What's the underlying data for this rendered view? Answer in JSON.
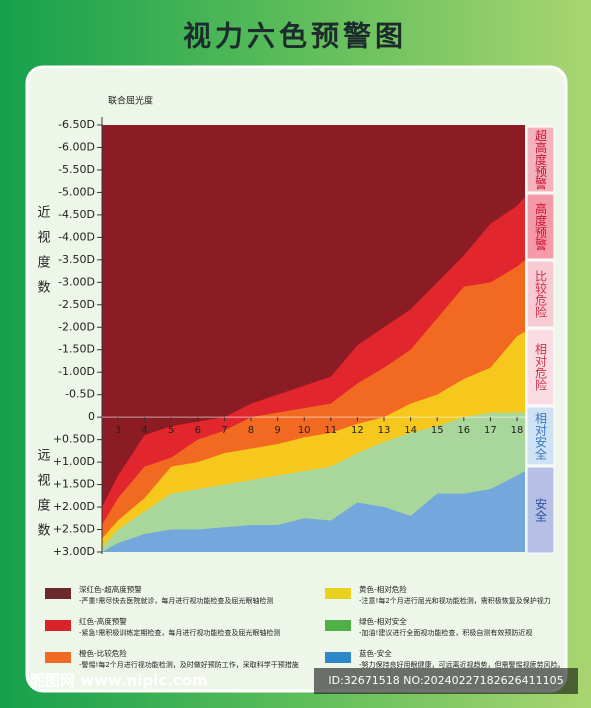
{
  "chart_data": {
    "type": "area",
    "title": "视力六色预警图",
    "y_axis_label": "联合屈光度",
    "myopia_label": "近视度数",
    "hyperopia_label": "远视度数",
    "x": [
      2.4,
      3,
      4,
      5,
      6,
      7,
      8,
      9,
      10,
      11,
      12,
      13,
      14,
      15,
      16,
      17,
      18,
      18.3
    ],
    "xlim": [
      2.4,
      18.3
    ],
    "xticks": [
      3,
      4,
      5,
      6,
      7,
      8,
      9,
      10,
      11,
      12,
      13,
      14,
      15,
      16,
      17,
      18
    ],
    "ylim": [
      -6.5,
      3
    ],
    "yticks": [
      {
        "value": -6.5,
        "label": "-6.50D"
      },
      {
        "value": -6,
        "label": "-6.00D"
      },
      {
        "value": -5.5,
        "label": "-5.50D"
      },
      {
        "value": -5,
        "label": "-5.00D"
      },
      {
        "value": -4.5,
        "label": "-4.50D"
      },
      {
        "value": -4,
        "label": "-4.00D"
      },
      {
        "value": -3.5,
        "label": "-3.50D"
      },
      {
        "value": -3,
        "label": "-3.00D"
      },
      {
        "value": -2.5,
        "label": "-2.50D"
      },
      {
        "value": -2,
        "label": "-2.00D"
      },
      {
        "value": -1.5,
        "label": "-1.50D"
      },
      {
        "value": -1,
        "label": "-1.00D"
      },
      {
        "value": -0.5,
        "label": "-0.5D"
      },
      0,
      {
        "value": 0.5,
        "label": "+0.50D"
      },
      {
        "value": 1,
        "label": "+1.00D"
      },
      {
        "value": 1.5,
        "label": "+1.50D"
      },
      {
        "value": 2,
        "label": "+2.00D"
      },
      {
        "value": 2.5,
        "label": "+2.50D"
      },
      {
        "value": 3,
        "label": "+3.00D"
      }
    ],
    "series": [
      {
        "name": "深红色-超高度预警",
        "color": "#8b1c24",
        "legend_color": "#6b2a2a",
        "description": "-严重!需尽快去医院就诊，每月进行视功能检查及屈光眼轴检测",
        "values": [
          -6.5,
          -6.5,
          -6.5,
          -6.5,
          -6.5,
          -6.5,
          -6.5,
          -6.5,
          -6.5,
          -6.5,
          -6.5,
          -6.5,
          -6.5,
          -6.5,
          -6.5,
          -6.5,
          -6.5,
          -6.5
        ]
      },
      {
        "name": "红色-高度预警",
        "color": "#e1262d",
        "legend_color": "#d8232a",
        "description": "-紧急!需积极训练定期检查，每月进行视功能检查及屈光眼轴检测",
        "values": [
          2.0,
          1.3,
          0.4,
          0.2,
          0.1,
          0,
          -0.3,
          -0.5,
          -0.7,
          -0.9,
          -1.6,
          -2.0,
          -2.4,
          -3.0,
          -3.6,
          -4.3,
          -4.7,
          -4.9
        ]
      },
      {
        "name": "橙色-比较危险",
        "color": "#f26a22",
        "legend_color": "#ef6b25",
        "description": "-警惕!每2个月进行视功能检测，及时做好预防工作，采取科学干预措施",
        "values": [
          2.4,
          1.8,
          1.1,
          0.9,
          0.5,
          0.3,
          0,
          -0.1,
          -0.2,
          -0.3,
          -0.75,
          -1.1,
          -1.5,
          -2.2,
          -2.9,
          -3.0,
          -3.35,
          -3.5
        ]
      },
      {
        "name": "黄色-相对危险",
        "color": "#f6c71c",
        "legend_color": "#e8d21e",
        "description": "-注意!每2个月进行屈光和视功能检测，需积极恢复及保护视力",
        "values": [
          2.7,
          2.3,
          1.8,
          1.1,
          1.0,
          0.8,
          0.7,
          0.6,
          0.45,
          0.35,
          0.15,
          0,
          -0.3,
          -0.5,
          -0.85,
          -1.1,
          -1.8,
          -1.9
        ]
      },
      {
        "name": "绿色-相对安全",
        "color": "#a9d69a",
        "legend_color": "#4fb048",
        "description": "-加油!建议进行全面视功能检查，积极自测有效预防近视",
        "values": [
          2.9,
          2.5,
          2.1,
          1.7,
          1.6,
          1.5,
          1.4,
          1.3,
          1.2,
          1.1,
          0.8,
          0.55,
          0.35,
          0.2,
          0,
          -0.1,
          -0.1,
          -0.1
        ]
      },
      {
        "name": "蓝色-安全",
        "color": "#74a8dc",
        "legend_color": "#2e88c8",
        "description": "-努力保持良好用眼健康，可远离近视趋势，但需警惕视疲劳风险。",
        "values": [
          3.0,
          2.8,
          2.6,
          2.5,
          2.5,
          2.45,
          2.4,
          2.4,
          2.25,
          2.3,
          1.9,
          2.0,
          2.2,
          1.7,
          1.7,
          1.6,
          1.3,
          1.2
        ]
      }
    ],
    "zones": [
      {
        "label": "超高度预警",
        "color": "#f4b2bd",
        "text_color": "#c8102e"
      },
      {
        "label": "高度预警",
        "color": "#f59aa8",
        "text_color": "#c8102e"
      },
      {
        "label": "比较危险",
        "color": "#f8cbd4",
        "text_color": "#d0304a"
      },
      {
        "label": "相对危险",
        "color": "#fadde3",
        "text_color": "#d0304a"
      },
      {
        "label": "相对安全",
        "color": "#cfe2f3",
        "text_color": "#3a78c0"
      },
      {
        "label": "安全",
        "color": "#b6bfe6",
        "text_color": "#2b4ea0"
      }
    ],
    "watermark": {
      "site": "昵图网 www.nipic.com",
      "id": "ID:32671518 NO:20240227182626411105"
    }
  }
}
